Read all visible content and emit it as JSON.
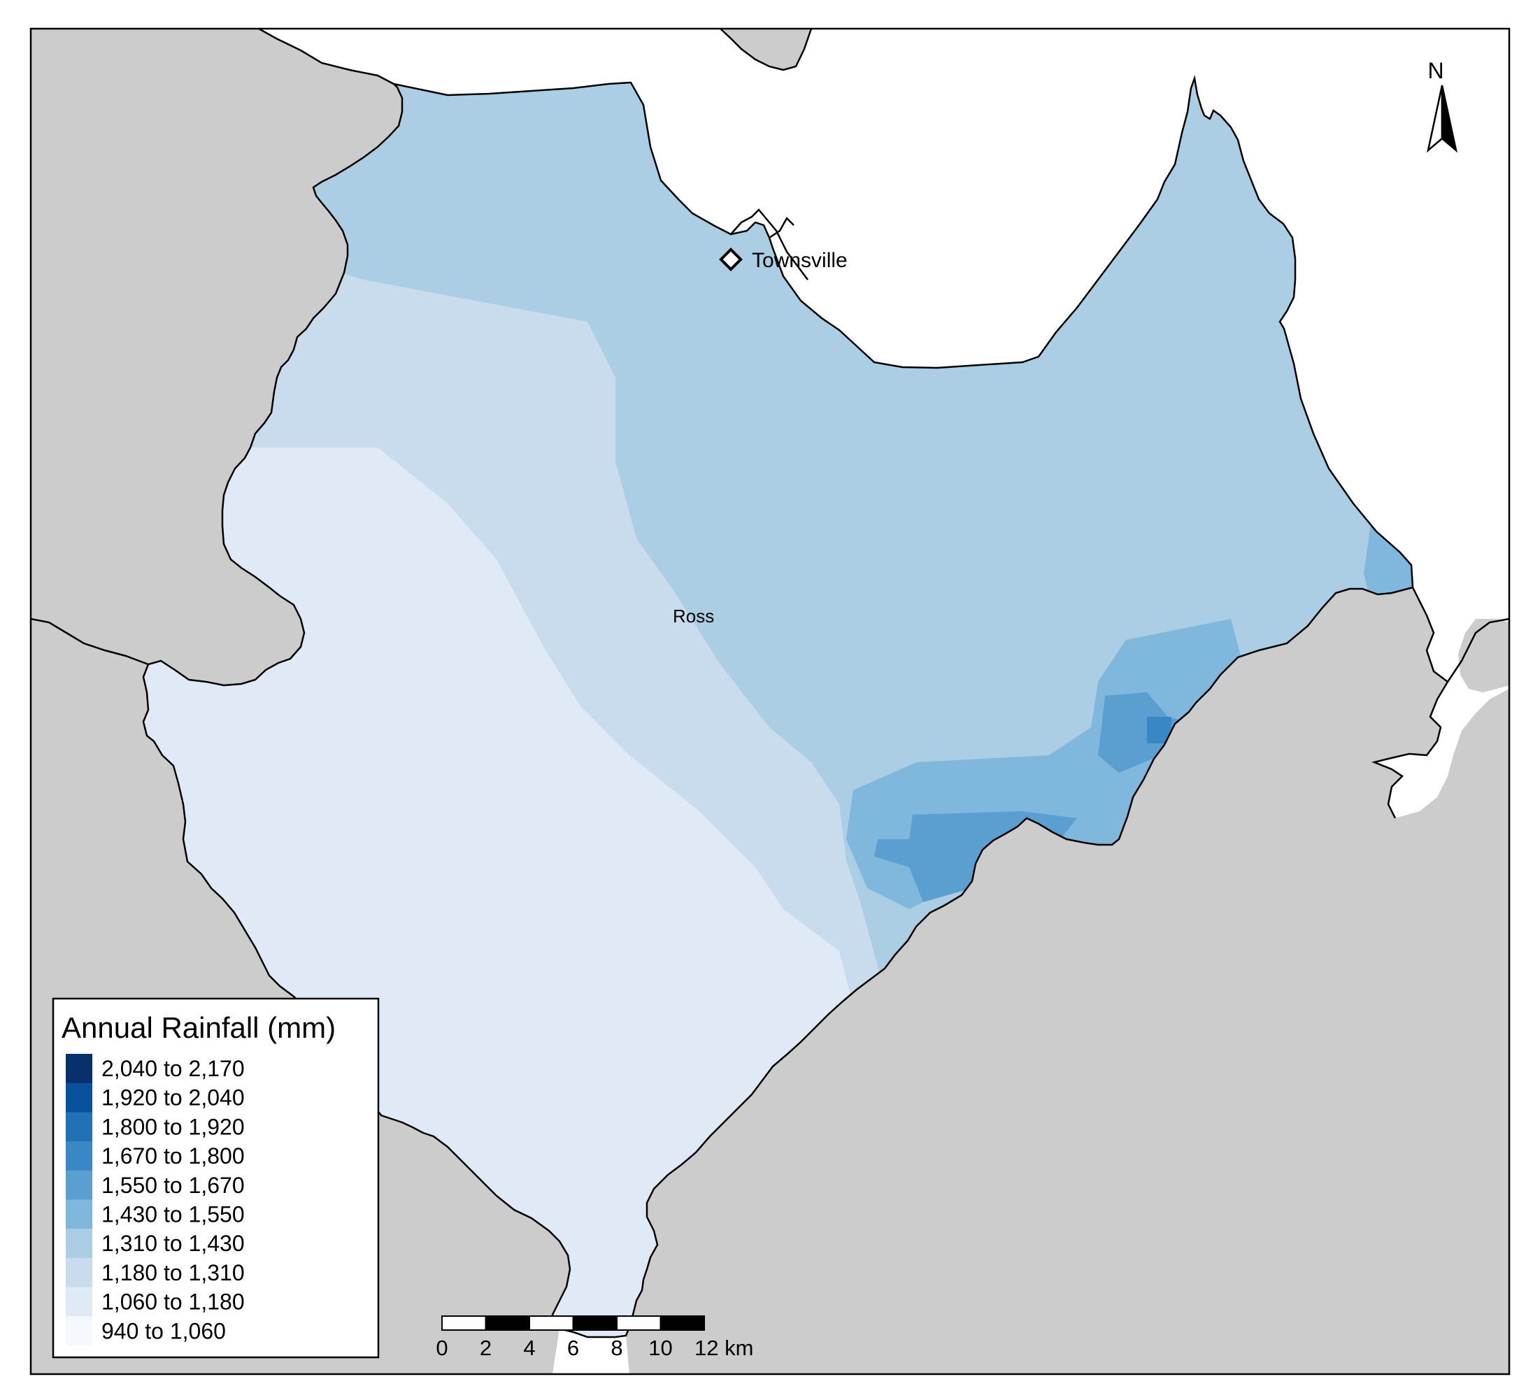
{
  "map": {
    "places": {
      "townsville": "Townsville",
      "ross": "Ross"
    },
    "north_arrow": "N",
    "colors": {
      "land": "#cccccc",
      "sea": "#ffffff",
      "coast": "#000000"
    }
  },
  "legend": {
    "title": "Annual Rainfall (mm)",
    "classes": [
      {
        "label": "2,040 to 2,170",
        "color": "#08306b"
      },
      {
        "label": "1,920 to 2,040",
        "color": "#08519c"
      },
      {
        "label": "1,800 to 1,920",
        "color": "#2171b5"
      },
      {
        "label": "1,670 to 1,800",
        "color": "#3a87c5"
      },
      {
        "label": "1,550 to 1,670",
        "color": "#5a9fd0"
      },
      {
        "label": "1,430 to 1,550",
        "color": "#7fb8dc"
      },
      {
        "label": "1,310 to 1,430",
        "color": "#abcee5"
      },
      {
        "label": "1,180 to 1,310",
        "color": "#c8dcee"
      },
      {
        "label": "1,060 to 1,180",
        "color": "#e0eaf6"
      },
      {
        "label": "940 to 1,060",
        "color": "#f5f9fe"
      }
    ]
  },
  "scalebar": {
    "ticks": [
      "0",
      "2",
      "4",
      "6",
      "8",
      "10",
      "12 km"
    ]
  }
}
